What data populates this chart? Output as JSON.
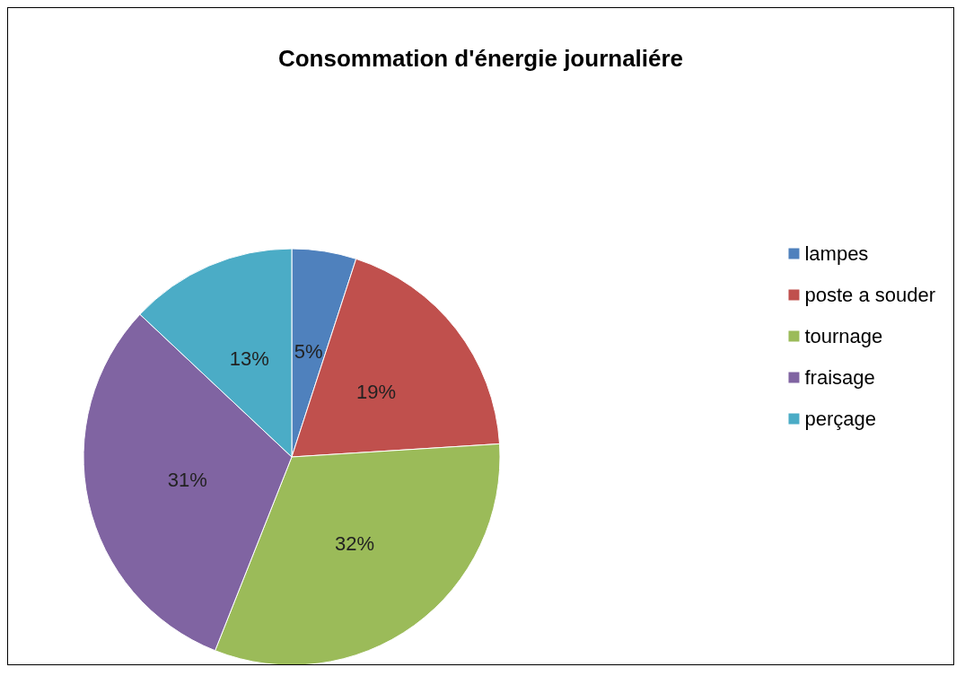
{
  "chart_data": {
    "type": "pie",
    "title": "Consommation d'énergie journaliére",
    "categories": [
      "lampes",
      "poste a souder",
      "tournage",
      "fraisage",
      "perçage"
    ],
    "values": [
      5,
      19,
      32,
      31,
      13
    ],
    "colors": [
      "#4f81bd",
      "#c0504d",
      "#9bbb59",
      "#8064a2",
      "#4bacc6"
    ],
    "value_labels": [
      "5%",
      "19%",
      "32%",
      "31%",
      "13%"
    ],
    "legend": "right"
  }
}
